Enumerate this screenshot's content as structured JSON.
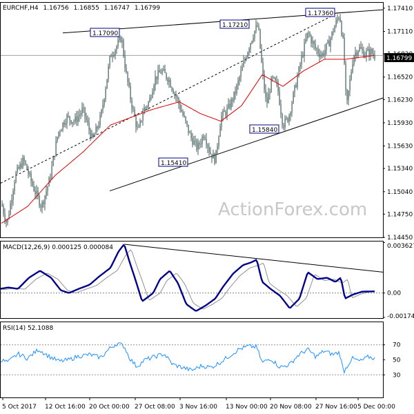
{
  "chart_data": [
    {
      "type": "candlestick",
      "title": "EURCHF,H4",
      "ohlc_header": {
        "open": "1.16756",
        "high": "1.16855",
        "low": "1.16747",
        "close": "1.16799"
      },
      "last_price_label": "1.16799",
      "ylim": [
        1.1445,
        1.1748
      ],
      "y_ticks": [
        "1.17410",
        "1.17110",
        "1.16820",
        "1.16520",
        "1.16230",
        "1.15930",
        "1.15630",
        "1.15340",
        "1.15040",
        "1.14750",
        "1.14450"
      ],
      "x_ticks": [
        "5 Oct 2017",
        "12 Oct 16:00",
        "20 Oct 00:00",
        "27 Oct 08:00",
        "3 Nov 16:00",
        "13 Nov 00:00",
        "20 Nov 08:00",
        "27 Nov 16:00",
        "5 Dec 00:00"
      ],
      "annotations": [
        "1.17090",
        "1.17210",
        "1.17360",
        "1.15410",
        "1.15840"
      ],
      "watermark": "ActionForex.com",
      "price_keypoints": [
        [
          0,
          1.1495
        ],
        [
          10,
          1.1462
        ],
        [
          22,
          1.1525
        ],
        [
          34,
          1.1545
        ],
        [
          48,
          1.151
        ],
        [
          60,
          1.1485
        ],
        [
          72,
          1.152
        ],
        [
          84,
          1.158
        ],
        [
          96,
          1.16
        ],
        [
          108,
          1.1595
        ],
        [
          120,
          1.161
        ],
        [
          134,
          1.157
        ],
        [
          146,
          1.16
        ],
        [
          160,
          1.168
        ],
        [
          168,
          1.169
        ],
        [
          176,
          1.1704
        ],
        [
          182,
          1.166
        ],
        [
          190,
          1.162
        ],
        [
          200,
          1.158
        ],
        [
          208,
          1.161
        ],
        [
          216,
          1.162
        ],
        [
          224,
          1.165
        ],
        [
          234,
          1.166
        ],
        [
          244,
          1.165
        ],
        [
          256,
          1.1625
        ],
        [
          266,
          1.16
        ],
        [
          276,
          1.1575
        ],
        [
          286,
          1.156
        ],
        [
          296,
          1.158
        ],
        [
          304,
          1.1555
        ],
        [
          312,
          1.1545
        ],
        [
          320,
          1.16
        ],
        [
          330,
          1.161
        ],
        [
          340,
          1.163
        ],
        [
          350,
          1.166
        ],
        [
          360,
          1.169
        ],
        [
          368,
          1.171
        ],
        [
          374,
          1.1719
        ],
        [
          380,
          1.166
        ],
        [
          386,
          1.1615
        ],
        [
          394,
          1.165
        ],
        [
          402,
          1.164
        ],
        [
          410,
          1.159
        ],
        [
          418,
          1.16
        ],
        [
          428,
          1.164
        ],
        [
          438,
          1.168
        ],
        [
          446,
          1.171
        ],
        [
          456,
          1.169
        ],
        [
          466,
          1.168
        ],
        [
          476,
          1.1695
        ],
        [
          486,
          1.172
        ],
        [
          492,
          1.1734
        ],
        [
          498,
          1.169
        ],
        [
          502,
          1.161
        ],
        [
          506,
          1.164
        ],
        [
          512,
          1.168
        ],
        [
          520,
          1.169
        ],
        [
          528,
          1.1682
        ],
        [
          536,
          1.1685
        ],
        [
          543,
          1.168
        ]
      ],
      "moving_average_keypoints": [
        [
          0,
          1.1462
        ],
        [
          40,
          1.1485
        ],
        [
          80,
          1.1525
        ],
        [
          120,
          1.1555
        ],
        [
          160,
          1.159
        ],
        [
          190,
          1.16
        ],
        [
          220,
          1.161
        ],
        [
          260,
          1.162
        ],
        [
          290,
          1.1605
        ],
        [
          320,
          1.1595
        ],
        [
          350,
          1.1615
        ],
        [
          380,
          1.1655
        ],
        [
          410,
          1.164
        ],
        [
          440,
          1.166
        ],
        [
          470,
          1.1675
        ],
        [
          500,
          1.1675
        ],
        [
          543,
          1.168
        ]
      ],
      "trendlines": [
        {
          "x1": 90,
          "y1": 1.1709,
          "x2": 555,
          "y2": 1.1739,
          "style": "solid"
        },
        {
          "x1": 158,
          "y1": 1.1505,
          "x2": 555,
          "y2": 1.1625,
          "style": "solid"
        },
        {
          "x1": 0,
          "y1": 1.1515,
          "x2": 490,
          "y2": 1.1735,
          "style": "dashed"
        }
      ]
    },
    {
      "type": "line",
      "title": "MACD(12,26,9) 0.000125 0.000084",
      "ylim": [
        -0.0018,
        0.0037
      ],
      "y_ticks": [
        "0.003627",
        "0.00",
        "-0.001748"
      ],
      "keypoints": [
        [
          0,
          0.0003
        ],
        [
          12,
          0.0004
        ],
        [
          26,
          0.0003
        ],
        [
          42,
          0.0011
        ],
        [
          58,
          0.0016
        ],
        [
          74,
          0.0011
        ],
        [
          88,
          0.0002
        ],
        [
          100,
          0.0
        ],
        [
          114,
          0.0003
        ],
        [
          130,
          0.0006
        ],
        [
          144,
          0.0012
        ],
        [
          160,
          0.0018
        ],
        [
          172,
          0.003
        ],
        [
          180,
          0.0035
        ],
        [
          188,
          0.0022
        ],
        [
          196,
          0.001
        ],
        [
          206,
          -0.0006
        ],
        [
          222,
          0.0
        ],
        [
          232,
          0.001
        ],
        [
          246,
          0.0016
        ],
        [
          258,
          0.0007
        ],
        [
          270,
          -0.0008
        ],
        [
          284,
          -0.0013
        ],
        [
          298,
          -0.0009
        ],
        [
          312,
          -0.0004
        ],
        [
          324,
          0.0005
        ],
        [
          338,
          0.0014
        ],
        [
          352,
          0.002
        ],
        [
          364,
          0.0022
        ],
        [
          372,
          0.0024
        ],
        [
          380,
          0.0008
        ],
        [
          392,
          0.0003
        ],
        [
          406,
          -0.0002
        ],
        [
          420,
          -0.0011
        ],
        [
          434,
          -0.0004
        ],
        [
          446,
          0.0015
        ],
        [
          460,
          0.001
        ],
        [
          474,
          0.0011
        ],
        [
          486,
          0.0008
        ],
        [
          494,
          0.0011
        ],
        [
          500,
          -0.0004
        ],
        [
          512,
          -0.0001
        ],
        [
          525,
          0.0001
        ],
        [
          543,
          0.00012
        ]
      ],
      "trendline": {
        "x1": 180,
        "y1": 0.0035,
        "x2": 555,
        "y2": 0.0015
      }
    },
    {
      "type": "line",
      "title": "RSI(14) 52.1088",
      "ylim": [
        0,
        100
      ],
      "y_ticks": [
        "70",
        "50",
        "30"
      ],
      "levels": [
        70,
        30
      ],
      "keypoints": [
        [
          0,
          50
        ],
        [
          12,
          47
        ],
        [
          26,
          58
        ],
        [
          40,
          52
        ],
        [
          56,
          64
        ],
        [
          72,
          54
        ],
        [
          86,
          48
        ],
        [
          100,
          50
        ],
        [
          114,
          55
        ],
        [
          130,
          57
        ],
        [
          146,
          53
        ],
        [
          160,
          66
        ],
        [
          170,
          72
        ],
        [
          180,
          68
        ],
        [
          188,
          52
        ],
        [
          198,
          41
        ],
        [
          210,
          50
        ],
        [
          224,
          54
        ],
        [
          238,
          58
        ],
        [
          250,
          44
        ],
        [
          264,
          40
        ],
        [
          278,
          36
        ],
        [
          292,
          42
        ],
        [
          306,
          40
        ],
        [
          318,
          46
        ],
        [
          332,
          55
        ],
        [
          346,
          64
        ],
        [
          360,
          68
        ],
        [
          372,
          67
        ],
        [
          380,
          46
        ],
        [
          392,
          52
        ],
        [
          406,
          40
        ],
        [
          420,
          44
        ],
        [
          432,
          56
        ],
        [
          446,
          64
        ],
        [
          458,
          54
        ],
        [
          470,
          62
        ],
        [
          482,
          57
        ],
        [
          492,
          60
        ],
        [
          498,
          34
        ],
        [
          510,
          52
        ],
        [
          522,
          48
        ],
        [
          534,
          54
        ],
        [
          543,
          52
        ]
      ]
    }
  ]
}
